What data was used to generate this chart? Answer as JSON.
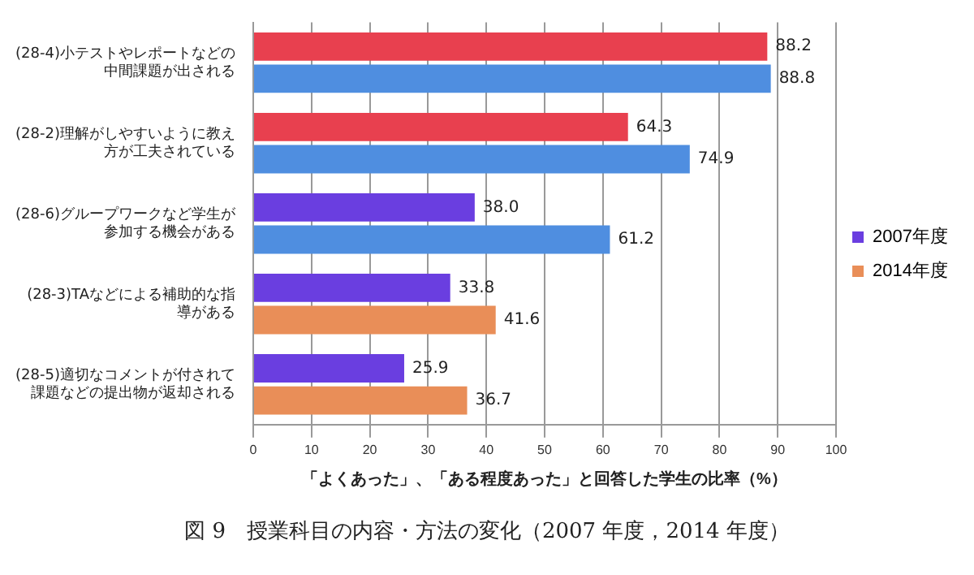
{
  "chart_data": {
    "type": "bar",
    "orientation": "horizontal",
    "title": "図 9　授業科目の内容・方法の変化（2007 年度，2014 年度）",
    "xlabel": "「よくあった」、「ある程度あった」と回答した学生の比率（%）",
    "categories": [
      "(28-4)小テストやレポートなどの中間課題が出される",
      "(28-2)理解がしやすいように教え方が工夫されている",
      "(28-6)グループワークなど学生が参加する機会がある",
      "(28-3)TAなどによる補助的な指導がある",
      "(28-5)適切なコメントが付されて課題などの提出物が返却される"
    ],
    "series": [
      {
        "name": "2007年度",
        "color": "#6a3ee0",
        "colors": [
          "#e8404f",
          "#e8404f",
          "#6a3ee0",
          "#6a3ee0",
          "#6a3ee0"
        ],
        "values": [
          88.2,
          64.3,
          38.0,
          33.8,
          25.9
        ],
        "value_labels": [
          "88.2",
          "64.3",
          "38.0",
          "33.8",
          "25.9"
        ]
      },
      {
        "name": "2014年度",
        "color": "#e98e58",
        "colors": [
          "#4f8ee0",
          "#4f8ee0",
          "#4f8ee0",
          "#e98e58",
          "#e98e58"
        ],
        "values": [
          88.8,
          74.9,
          61.2,
          41.6,
          36.7
        ],
        "value_labels": [
          "88.8",
          "74.9",
          "61.2",
          "41.6",
          "36.7"
        ]
      }
    ],
    "xlim": [
      0,
      100
    ],
    "xticks": [
      0,
      10,
      20,
      30,
      40,
      50,
      60,
      70,
      80,
      90,
      100
    ],
    "grid": "x",
    "legend": "right"
  }
}
